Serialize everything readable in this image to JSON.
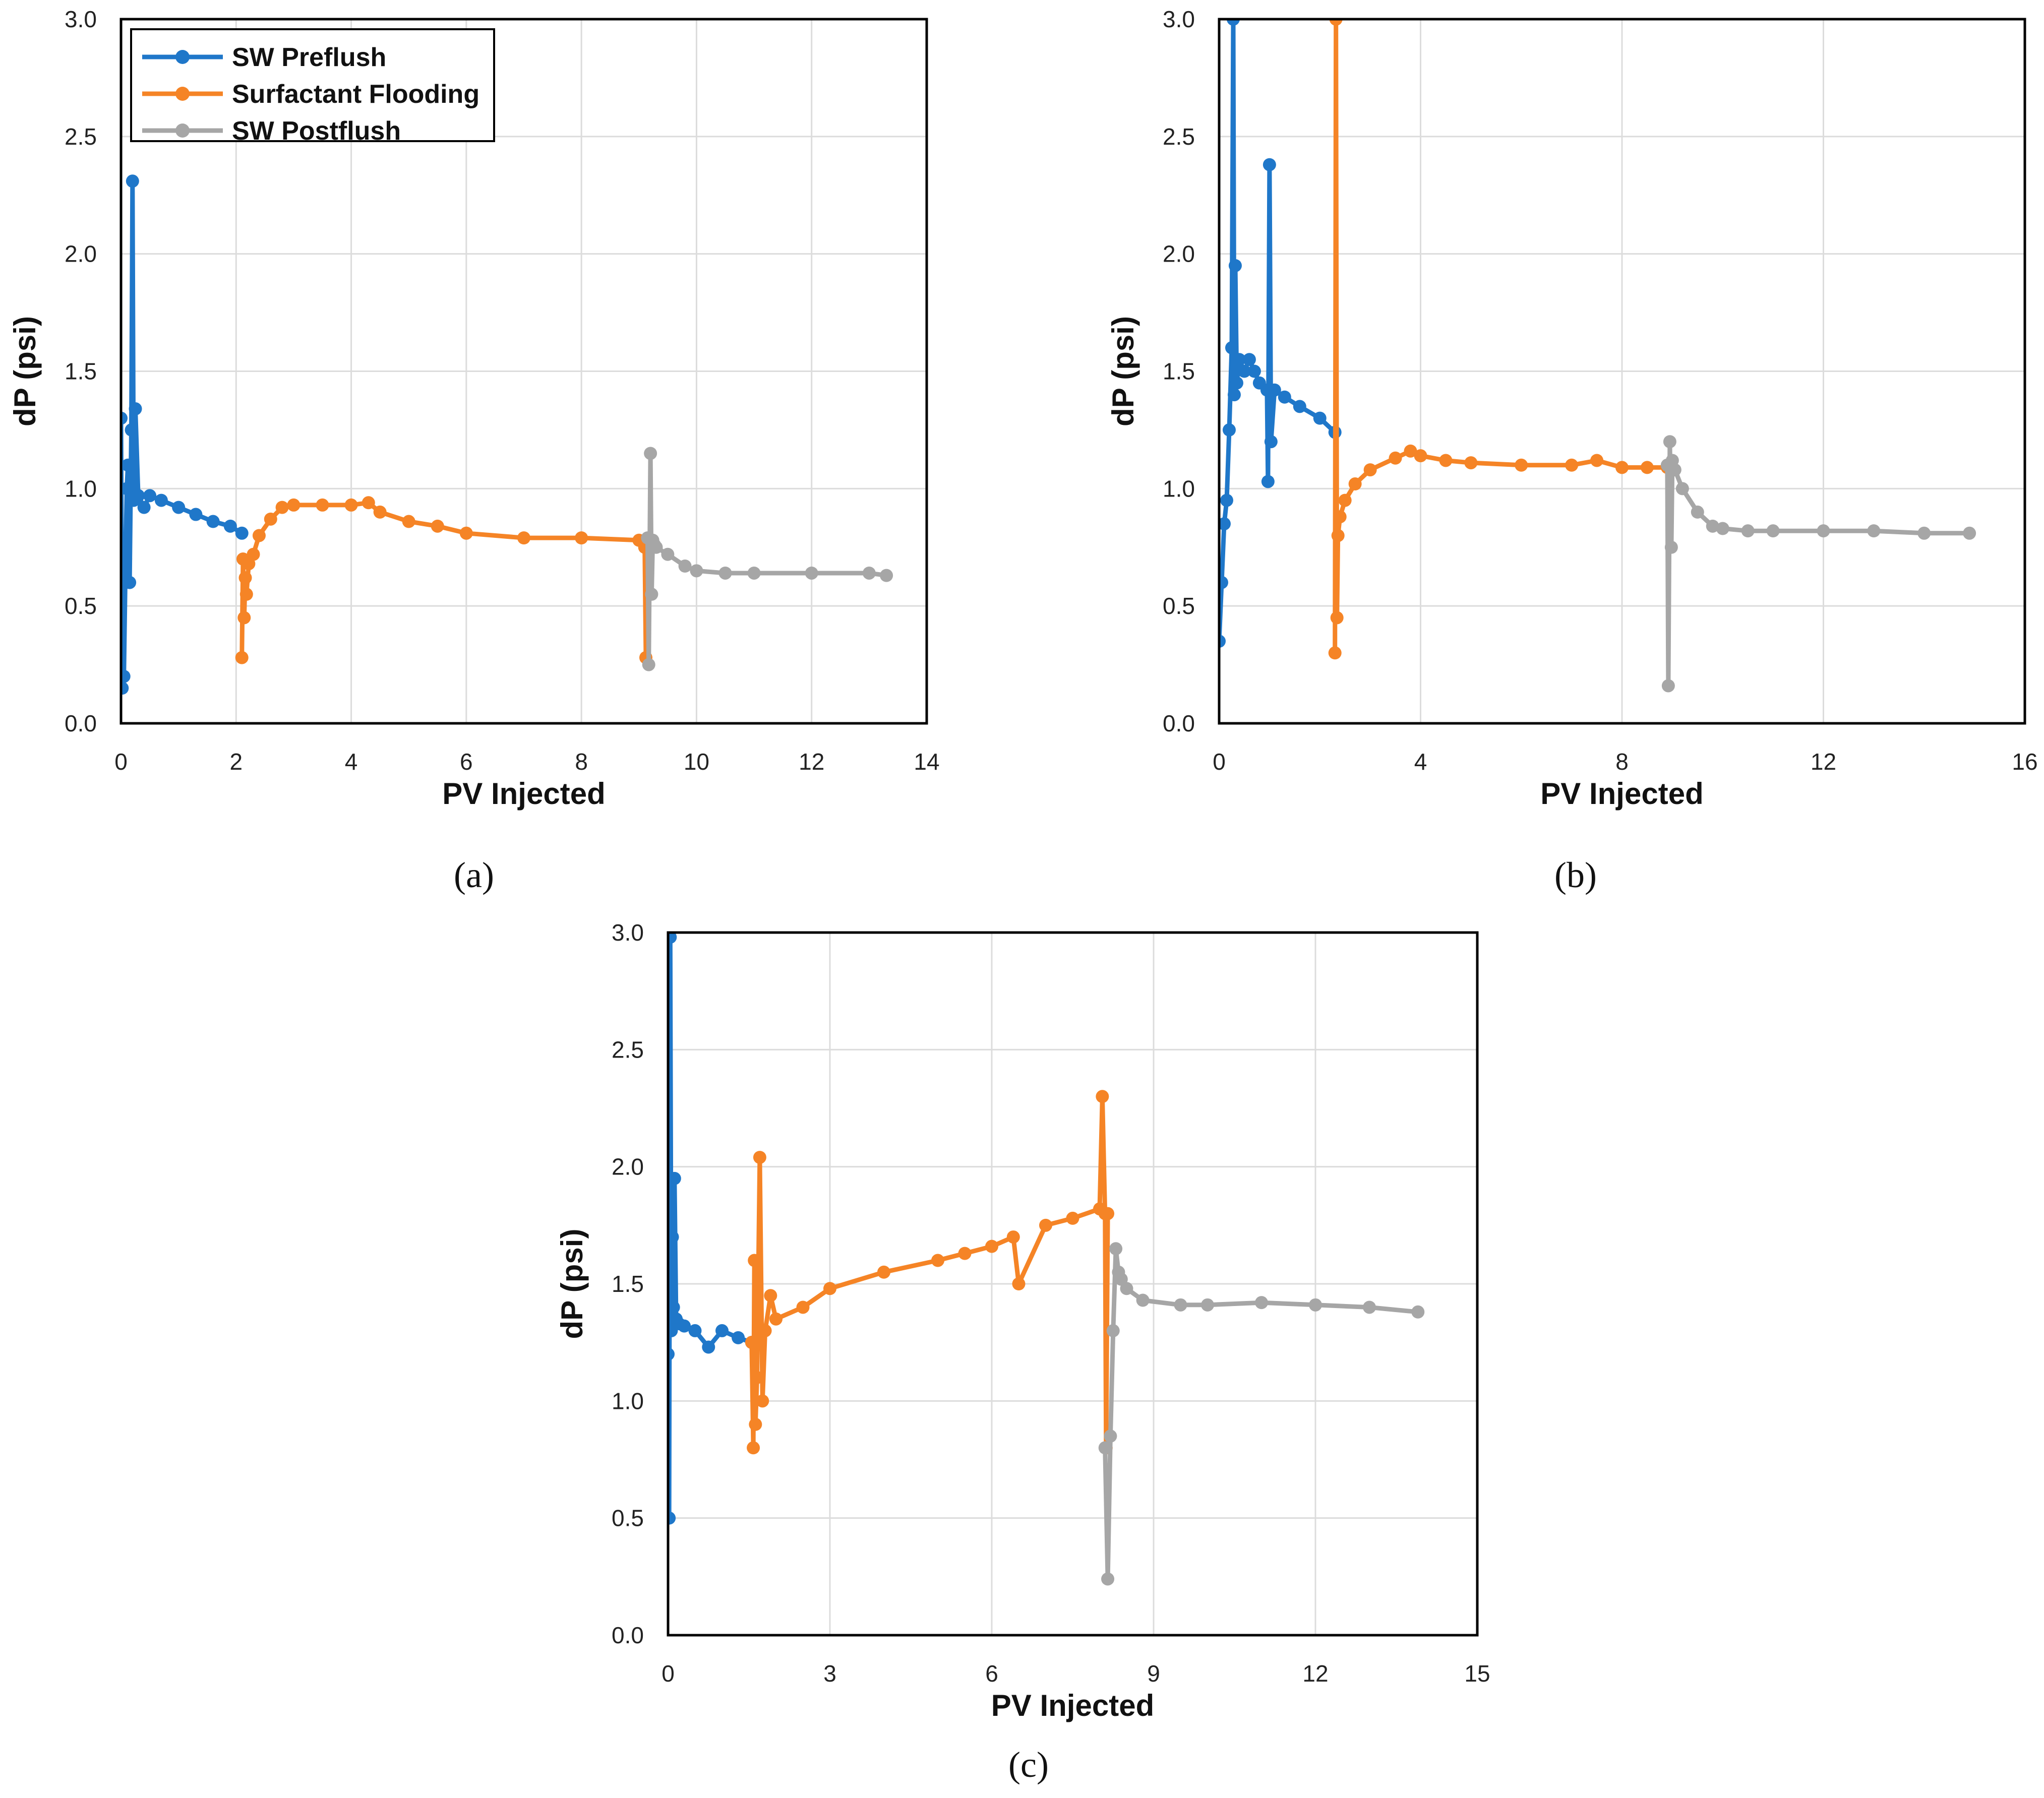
{
  "chart_data": [
    {
      "id": "a",
      "type": "line",
      "caption": "(a)",
      "xlabel": "PV Injected",
      "ylabel": "dP (psi)",
      "xlim": [
        0,
        14
      ],
      "ylim": [
        0,
        3.0
      ],
      "xticks": [
        "0",
        "2",
        "4",
        "6",
        "8",
        "10",
        "12",
        "14"
      ],
      "yticks": [
        "0.0",
        "0.5",
        "1.0",
        "1.5",
        "2.0",
        "2.5",
        "3.0"
      ],
      "grid": true,
      "legend": {
        "position": "top-left",
        "entries": [
          "SW Preflush",
          "Surfactant Flooding",
          "SW Postflush"
        ]
      },
      "series": [
        {
          "name": "SW Preflush",
          "color": "#1f77c9",
          "x": [
            0.0,
            0.02,
            0.05,
            0.08,
            0.1,
            0.12,
            0.15,
            0.18,
            0.2,
            0.22,
            0.25,
            0.3,
            0.4,
            0.5,
            0.7,
            1.0,
            1.3,
            1.6,
            1.9,
            2.1
          ],
          "y": [
            1.3,
            0.15,
            0.2,
            0.7,
            1.0,
            1.1,
            0.6,
            1.25,
            2.31,
            0.95,
            1.34,
            0.97,
            0.92,
            0.97,
            0.95,
            0.92,
            0.89,
            0.86,
            0.84,
            0.81
          ]
        },
        {
          "name": "Surfactant Flooding",
          "color": "#f58426",
          "x": [
            2.1,
            2.12,
            2.14,
            2.16,
            2.18,
            2.22,
            2.3,
            2.4,
            2.6,
            2.8,
            3.0,
            3.5,
            4.0,
            4.3,
            4.5,
            5.0,
            5.5,
            6.0,
            7.0,
            8.0,
            9.0,
            9.1,
            9.12,
            9.14
          ],
          "y": [
            0.28,
            0.7,
            0.45,
            0.62,
            0.55,
            0.68,
            0.72,
            0.8,
            0.87,
            0.92,
            0.93,
            0.93,
            0.93,
            0.94,
            0.9,
            0.86,
            0.84,
            0.81,
            0.79,
            0.79,
            0.78,
            0.75,
            0.28,
            0.78
          ]
        },
        {
          "name": "SW Postflush",
          "color": "#a6a6a6",
          "x": [
            9.15,
            9.17,
            9.2,
            9.22,
            9.24,
            9.27,
            9.3,
            9.5,
            9.8,
            10.0,
            10.5,
            11.0,
            12.0,
            13.0,
            13.3
          ],
          "y": [
            0.79,
            0.25,
            1.15,
            0.55,
            0.78,
            0.76,
            0.75,
            0.72,
            0.67,
            0.65,
            0.64,
            0.64,
            0.64,
            0.64,
            0.63
          ]
        }
      ]
    },
    {
      "id": "b",
      "type": "line",
      "caption": "(b)",
      "xlabel": "PV Injected",
      "ylabel": "dP (psi)",
      "xlim": [
        0,
        16
      ],
      "ylim": [
        0,
        3.0
      ],
      "xticks": [
        "0",
        "4",
        "8",
        "12",
        "16"
      ],
      "yticks": [
        "0.0",
        "0.5",
        "1.0",
        "1.5",
        "2.0",
        "2.5",
        "3.0"
      ],
      "grid": true,
      "series": [
        {
          "name": "SW Preflush",
          "color": "#1f77c9",
          "x": [
            0.0,
            0.05,
            0.1,
            0.15,
            0.2,
            0.25,
            0.28,
            0.3,
            0.32,
            0.35,
            0.4,
            0.5,
            0.6,
            0.7,
            0.8,
            0.95,
            0.97,
            1.0,
            1.03,
            1.1,
            1.3,
            1.6,
            2.0,
            2.3
          ],
          "y": [
            0.35,
            0.6,
            0.85,
            0.95,
            1.25,
            1.6,
            3.0,
            1.4,
            1.95,
            1.45,
            1.55,
            1.5,
            1.55,
            1.5,
            1.45,
            1.42,
            1.03,
            2.38,
            1.2,
            1.42,
            1.39,
            1.35,
            1.3,
            1.24
          ]
        },
        {
          "name": "Surfactant Flooding",
          "color": "#f58426",
          "x": [
            2.3,
            2.32,
            2.34,
            2.36,
            2.4,
            2.5,
            2.7,
            3.0,
            3.5,
            3.8,
            4.0,
            4.5,
            5.0,
            6.0,
            7.0,
            7.5,
            8.0,
            8.5,
            8.9
          ],
          "y": [
            0.3,
            3.0,
            0.45,
            0.8,
            0.88,
            0.95,
            1.02,
            1.08,
            1.13,
            1.16,
            1.14,
            1.12,
            1.11,
            1.1,
            1.1,
            1.12,
            1.09,
            1.09,
            1.09
          ]
        },
        {
          "name": "SW Postflush",
          "color": "#a6a6a6",
          "x": [
            8.9,
            8.92,
            8.95,
            8.98,
            9.0,
            9.05,
            9.2,
            9.5,
            9.8,
            10.0,
            10.5,
            11.0,
            12.0,
            13.0,
            14.0,
            14.9
          ],
          "y": [
            1.1,
            0.16,
            1.2,
            0.75,
            1.12,
            1.08,
            1.0,
            0.9,
            0.84,
            0.83,
            0.82,
            0.82,
            0.82,
            0.82,
            0.81,
            0.81
          ]
        }
      ]
    },
    {
      "id": "c",
      "type": "line",
      "caption": "(c)",
      "xlabel": "PV Injected",
      "ylabel": "dP (psi)",
      "xlim": [
        0,
        15
      ],
      "ylim": [
        0,
        3.0
      ],
      "xticks": [
        "0",
        "3",
        "6",
        "9",
        "12",
        "15"
      ],
      "yticks": [
        "0.0",
        "0.5",
        "1.0",
        "1.5",
        "2.0",
        "2.5",
        "3.0"
      ],
      "grid": true,
      "series": [
        {
          "name": "SW Preflush",
          "color": "#1f77c9",
          "x": [
            0.0,
            0.02,
            0.04,
            0.06,
            0.08,
            0.1,
            0.12,
            0.15,
            0.2,
            0.3,
            0.5,
            0.75,
            1.0,
            1.3,
            1.55
          ],
          "y": [
            1.2,
            0.5,
            2.98,
            1.3,
            1.7,
            1.4,
            1.95,
            1.35,
            1.33,
            1.32,
            1.3,
            1.23,
            1.3,
            1.27,
            1.25
          ]
        },
        {
          "name": "Surfactant Flooding",
          "color": "#f58426",
          "x": [
            1.55,
            1.58,
            1.6,
            1.62,
            1.65,
            1.7,
            1.75,
            1.8,
            1.9,
            2.0,
            2.5,
            3.0,
            4.0,
            5.0,
            5.5,
            6.0,
            6.4,
            6.5,
            7.0,
            7.5,
            8.0,
            8.05,
            8.1,
            8.12,
            8.15
          ],
          "y": [
            1.25,
            0.8,
            1.6,
            0.9,
            1.1,
            2.04,
            1.0,
            1.3,
            1.45,
            1.35,
            1.4,
            1.48,
            1.55,
            1.6,
            1.63,
            1.66,
            1.7,
            1.5,
            1.75,
            1.78,
            1.82,
            2.3,
            1.8,
            0.8,
            1.8
          ]
        },
        {
          "name": "SW Postflush",
          "color": "#a6a6a6",
          "x": [
            8.1,
            8.15,
            8.2,
            8.25,
            8.3,
            8.35,
            8.4,
            8.5,
            8.8,
            9.5,
            10.0,
            11.0,
            12.0,
            13.0,
            13.9
          ],
          "y": [
            0.8,
            0.24,
            0.85,
            1.3,
            1.65,
            1.55,
            1.52,
            1.48,
            1.43,
            1.41,
            1.41,
            1.42,
            1.41,
            1.4,
            1.38
          ]
        }
      ]
    }
  ]
}
